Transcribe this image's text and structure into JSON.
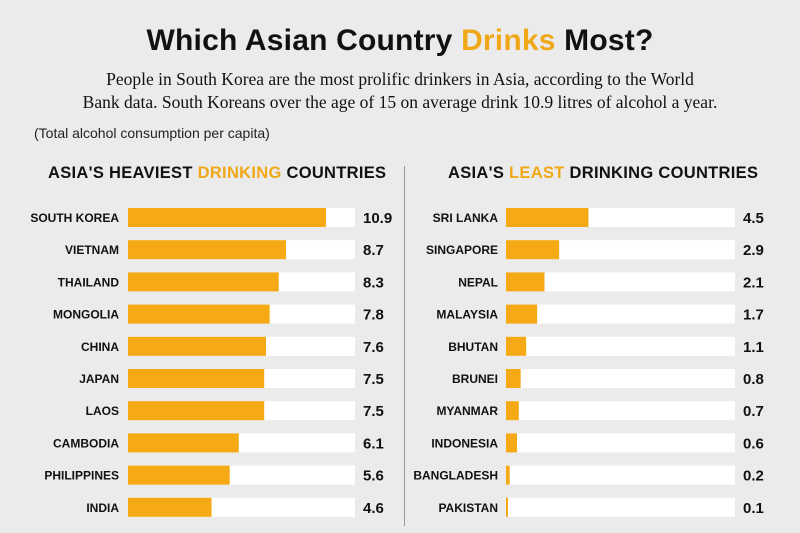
{
  "header": {
    "title_prefix": "Which Asian Country ",
    "title_accent": "Drinks",
    "title_suffix": " Most?",
    "description_line1": "People in South Korea are the most prolific drinkers in Asia, according to the World",
    "description_line2": "Bank data. South Koreans over the age of 15 on average drink 10.9 litres of alcohol a year.",
    "note": "(Total alcohol consumption per capita)"
  },
  "colors": {
    "accent": "#f0a818",
    "bar": "#f5a914",
    "track": "#ffffff",
    "background": "#ebebeb"
  },
  "chart_data": [
    {
      "type": "bar",
      "orientation": "horizontal",
      "title_prefix": "ASIA'S HEAVIEST ",
      "title_accent": "DRINKING",
      "title_suffix": " COUNTRIES",
      "categories": [
        "SOUTH KOREA",
        "VIETNAM",
        "THAILAND",
        "MONGOLIA",
        "CHINA",
        "JAPAN",
        "LAOS",
        "CAMBODIA",
        "PHILIPPINES",
        "INDIA"
      ],
      "values": [
        10.9,
        8.7,
        8.3,
        7.8,
        7.6,
        7.5,
        7.5,
        6.1,
        5.6,
        4.6
      ],
      "value_labels": [
        "10.9",
        "8.7",
        "8.3",
        "7.8",
        "7.6",
        "7.5",
        "7.5",
        "6.1",
        "5.6",
        "4.6"
      ],
      "xlim": [
        0,
        12.5
      ],
      "grid": false
    },
    {
      "type": "bar",
      "orientation": "horizontal",
      "title_prefix": "ASIA'S ",
      "title_accent": "LEAST",
      "title_suffix": " DRINKING COUNTRIES",
      "categories": [
        "SRI LANKA",
        "SINGAPORE",
        "NEPAL",
        "MALAYSIA",
        "BHUTAN",
        "BRUNEI",
        "MYANMAR",
        "INDONESIA",
        "BANGLADESH",
        "PAKISTAN"
      ],
      "values": [
        4.5,
        2.9,
        2.1,
        1.7,
        1.1,
        0.8,
        0.7,
        0.6,
        0.2,
        0.1
      ],
      "value_labels": [
        "4.5",
        "2.9",
        "2.1",
        "1.7",
        "1.1",
        "0.8",
        "0.7",
        "0.6",
        "0.2",
        "0.1"
      ],
      "xlim": [
        0,
        12.5
      ],
      "grid": false
    }
  ]
}
